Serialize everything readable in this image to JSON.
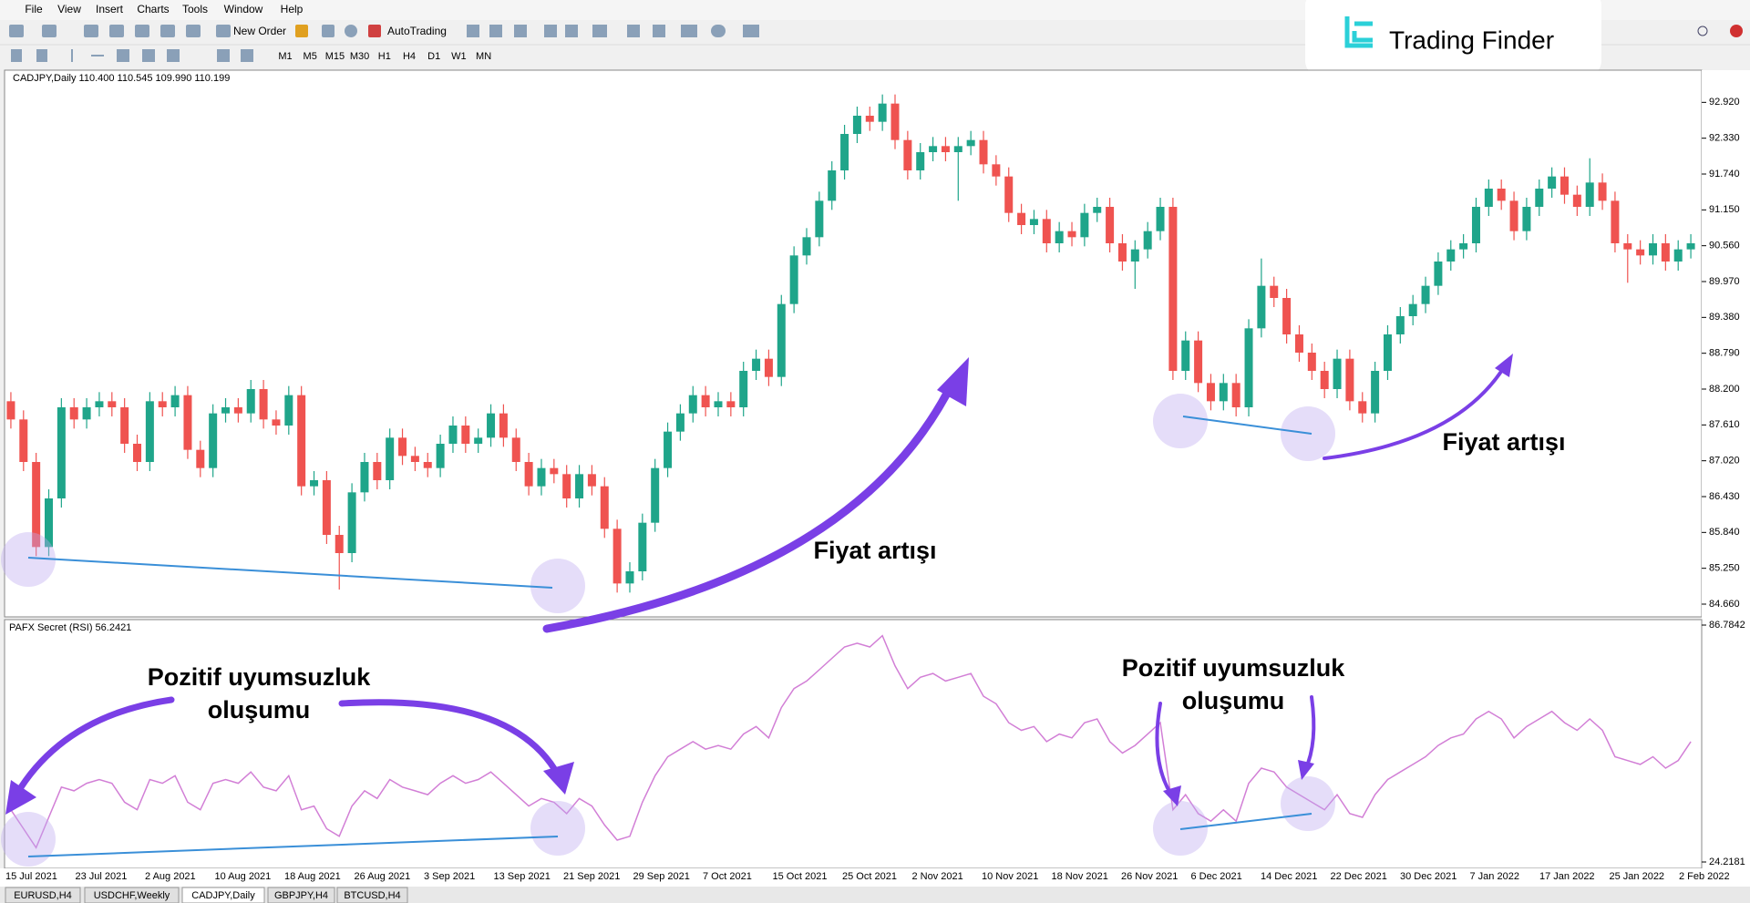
{
  "menu": [
    "File",
    "View",
    "Insert",
    "Charts",
    "Tools",
    "Window",
    "Help"
  ],
  "toolbar": {
    "buttons": [
      "New Order",
      "AutoTrading"
    ],
    "timeframes": [
      "M1",
      "M5",
      "M15",
      "M30",
      "H1",
      "H4",
      "D1",
      "W1",
      "MN"
    ]
  },
  "logo": "Trading Finder",
  "tabs": [
    "EURUSD,H4",
    "USDCHF,Weekly",
    "CADJPY,Daily",
    "GBPJPY,H4",
    "BTCUSD,H4"
  ],
  "active_tab": "CADJPY,Daily",
  "x_labels": [
    "15 Jul 2021",
    "23 Jul 2021",
    "2 Aug 2021",
    "10 Aug 2021",
    "18 Aug 2021",
    "26 Aug 2021",
    "3 Sep 2021",
    "13 Sep 2021",
    "21 Sep 2021",
    "29 Sep 2021",
    "7 Oct 2021",
    "15 Oct 2021",
    "25 Oct 2021",
    "2 Nov 2021",
    "10 Nov 2021",
    "18 Nov 2021",
    "26 Nov 2021",
    "6 Dec 2021",
    "14 Dec 2021",
    "22 Dec 2021",
    "30 Dec 2021",
    "7 Jan 2022",
    "17 Jan 2022",
    "25 Jan 2022",
    "2 Feb 2022"
  ],
  "chart_data": [
    {
      "type": "candlestick",
      "title": "CADJPY,Daily  110.400 110.545 109.990 110.199",
      "up_color": "#1fa58a",
      "down_color": "#ef5350",
      "open": [
        88.0,
        87.7,
        87.0,
        85.6,
        86.4,
        87.9,
        87.7,
        87.9,
        88.0,
        87.9,
        87.3,
        87.0,
        88.0,
        87.9,
        88.1,
        87.2,
        86.9,
        87.8,
        87.9,
        87.8,
        88.2,
        87.7,
        87.6,
        88.1,
        86.6,
        86.7,
        85.8,
        85.5,
        86.5,
        87.0,
        86.7,
        87.4,
        87.1,
        87.0,
        86.9,
        87.3,
        87.6,
        87.3,
        87.4,
        87.8,
        87.4,
        87.0,
        86.6,
        86.9,
        86.8,
        86.4,
        86.8,
        86.6,
        85.9,
        85.0,
        85.2,
        86.0,
        86.9,
        87.5,
        87.8,
        88.1,
        87.9,
        88.0,
        87.9,
        88.5,
        88.7,
        88.4,
        89.6,
        90.4,
        90.7,
        91.3,
        91.8,
        92.4,
        92.7,
        92.6,
        92.9,
        92.3,
        91.8,
        92.1,
        92.2,
        92.1,
        92.2,
        92.3,
        91.9,
        91.7,
        91.1,
        90.9,
        91.0,
        90.6,
        90.8,
        90.7,
        91.1,
        91.2,
        90.6,
        90.3,
        90.5,
        90.8,
        91.2,
        88.5,
        89.0,
        88.3,
        88.0,
        88.3,
        87.9,
        89.2,
        89.9,
        89.7,
        89.1,
        88.8,
        88.5,
        88.2,
        88.7,
        88.0,
        87.8,
        88.5,
        89.1,
        89.4,
        89.6,
        89.9,
        90.3,
        90.5,
        90.6,
        91.2,
        91.5,
        91.3,
        90.8,
        91.2,
        91.5,
        91.7,
        91.4,
        91.2,
        91.6,
        91.3,
        90.6,
        90.5,
        90.4,
        90.6,
        90.3,
        90.5
      ],
      "high": [
        88.15,
        87.85,
        87.15,
        86.55,
        88.05,
        88.05,
        88.05,
        88.15,
        88.15,
        88.05,
        87.45,
        88.15,
        88.15,
        88.25,
        88.25,
        87.35,
        87.95,
        88.05,
        88.05,
        88.35,
        88.35,
        87.85,
        88.25,
        88.25,
        86.85,
        86.85,
        85.95,
        86.65,
        87.15,
        87.15,
        87.55,
        87.55,
        87.25,
        87.15,
        87.45,
        87.75,
        87.75,
        87.55,
        87.95,
        87.95,
        87.55,
        87.15,
        87.05,
        87.05,
        86.95,
        86.95,
        86.95,
        86.75,
        86.05,
        85.35,
        86.15,
        87.05,
        87.65,
        87.95,
        88.25,
        88.25,
        88.15,
        88.15,
        88.65,
        88.85,
        88.85,
        89.75,
        90.55,
        90.85,
        91.45,
        91.95,
        92.55,
        92.85,
        92.85,
        93.05,
        93.05,
        92.45,
        92.25,
        92.35,
        92.35,
        92.35,
        92.45,
        92.45,
        92.05,
        91.85,
        91.25,
        91.15,
        91.15,
        90.95,
        90.95,
        91.25,
        91.35,
        91.35,
        90.75,
        90.65,
        90.95,
        91.35,
        91.35,
        89.15,
        89.15,
        88.45,
        88.45,
        88.45,
        89.35,
        90.35,
        90.05,
        89.85,
        89.25,
        88.95,
        88.65,
        88.85,
        88.85,
        88.15,
        88.65,
        89.25,
        89.55,
        89.75,
        90.05,
        90.45,
        90.65,
        90.75,
        91.35,
        91.65,
        91.65,
        91.45,
        91.35,
        91.65,
        91.85,
        91.85,
        91.55,
        92.0,
        91.75,
        91.45,
        90.75,
        90.65,
        90.75,
        90.75,
        90.65,
        90.75
      ],
      "low": [
        87.55,
        86.85,
        85.45,
        85.45,
        86.25,
        87.55,
        87.55,
        87.75,
        87.75,
        87.15,
        86.85,
        86.85,
        87.75,
        87.75,
        87.05,
        86.75,
        86.75,
        87.65,
        87.65,
        87.65,
        87.55,
        87.45,
        87.45,
        86.45,
        86.45,
        85.65,
        84.9,
        85.35,
        86.35,
        86.55,
        86.55,
        86.95,
        86.85,
        86.75,
        86.75,
        87.15,
        87.15,
        87.15,
        87.25,
        87.25,
        86.85,
        86.45,
        86.45,
        86.65,
        86.25,
        86.25,
        86.45,
        85.75,
        84.85,
        84.85,
        85.05,
        85.85,
        86.75,
        87.35,
        87.65,
        87.75,
        87.75,
        87.75,
        87.75,
        88.35,
        88.25,
        88.25,
        89.45,
        90.25,
        90.55,
        91.15,
        91.65,
        92.25,
        92.45,
        92.45,
        92.15,
        91.65,
        91.65,
        91.95,
        91.95,
        91.3,
        92.05,
        91.75,
        91.55,
        90.95,
        90.75,
        90.75,
        90.45,
        90.45,
        90.55,
        90.55,
        90.95,
        90.45,
        90.15,
        89.85,
        90.35,
        90.65,
        88.35,
        88.35,
        88.15,
        87.85,
        87.85,
        87.75,
        87.75,
        89.05,
        89.55,
        88.95,
        88.65,
        88.35,
        88.05,
        88.05,
        87.85,
        87.65,
        87.65,
        88.35,
        88.95,
        89.25,
        89.45,
        89.75,
        90.15,
        90.35,
        90.45,
        91.05,
        91.15,
        90.65,
        90.65,
        91.05,
        91.35,
        91.25,
        91.05,
        91.05,
        91.15,
        90.45,
        89.95,
        90.25,
        90.25,
        90.15,
        90.15,
        90.35
      ],
      "close": [
        87.7,
        87.0,
        85.6,
        86.4,
        87.9,
        87.7,
        87.9,
        88.0,
        87.9,
        87.3,
        87.0,
        88.0,
        87.9,
        88.1,
        87.2,
        86.9,
        87.8,
        87.9,
        87.8,
        88.2,
        87.7,
        87.6,
        88.1,
        86.6,
        86.7,
        85.8,
        85.5,
        86.5,
        87.0,
        86.7,
        87.4,
        87.1,
        87.0,
        86.9,
        87.3,
        87.6,
        87.3,
        87.4,
        87.8,
        87.4,
        87.0,
        86.6,
        86.9,
        86.8,
        86.4,
        86.8,
        86.6,
        85.9,
        85.0,
        85.2,
        86.0,
        86.9,
        87.5,
        87.8,
        88.1,
        87.9,
        88.0,
        87.9,
        88.5,
        88.7,
        88.4,
        89.6,
        90.4,
        90.7,
        91.3,
        91.8,
        92.4,
        92.7,
        92.6,
        92.9,
        92.3,
        91.8,
        92.1,
        92.2,
        92.1,
        92.2,
        92.3,
        91.9,
        91.7,
        91.1,
        90.9,
        91.0,
        90.6,
        90.8,
        90.7,
        91.1,
        91.2,
        90.6,
        90.3,
        90.5,
        90.8,
        91.2,
        88.5,
        89.0,
        88.3,
        88.0,
        88.3,
        87.9,
        89.2,
        89.9,
        89.7,
        89.1,
        88.8,
        88.5,
        88.2,
        88.7,
        88.0,
        87.8,
        88.5,
        89.1,
        89.4,
        89.6,
        89.9,
        90.3,
        90.5,
        90.6,
        91.2,
        91.5,
        91.3,
        90.8,
        91.2,
        91.5,
        91.7,
        91.4,
        91.2,
        91.6,
        91.3,
        90.6,
        90.5,
        90.4,
        90.6,
        90.3,
        90.5,
        90.6
      ],
      "ylim": [
        84.45,
        93.45
      ],
      "yticks": [
        {
          "value": 92.92,
          "label": "92.920"
        },
        {
          "value": 92.33,
          "label": "92.330"
        },
        {
          "value": 91.74,
          "label": "91.740"
        },
        {
          "value": 91.15,
          "label": "91.150"
        },
        {
          "value": 90.56,
          "label": "90.560"
        },
        {
          "value": 89.97,
          "label": "89.970"
        },
        {
          "value": 89.38,
          "label": "89.380"
        },
        {
          "value": 88.79,
          "label": "88.790"
        },
        {
          "value": 88.2,
          "label": "88.200"
        },
        {
          "value": 87.61,
          "label": "87.610"
        },
        {
          "value": 87.02,
          "label": "87.020"
        },
        {
          "value": 86.43,
          "label": "86.430"
        },
        {
          "value": 85.84,
          "label": "85.840"
        },
        {
          "value": 85.25,
          "label": "85.250"
        },
        {
          "value": 84.66,
          "label": "84.660"
        }
      ],
      "annotations": [
        "Fiyat artışı",
        "Fiyat artışı"
      ]
    },
    {
      "type": "line",
      "title": "PAFX Secret (RSI) 56.2421",
      "color": "#d27fd6",
      "values": [
        38,
        33,
        28,
        36,
        44,
        43,
        45,
        46,
        45,
        40,
        38,
        46,
        45,
        47,
        40,
        38,
        45,
        46,
        45,
        48,
        44,
        43,
        47,
        38,
        39,
        33,
        31,
        39,
        43,
        41,
        46,
        44,
        43,
        42,
        45,
        47,
        45,
        46,
        48,
        45,
        42,
        39,
        41,
        40,
        37,
        41,
        39,
        34,
        30,
        31,
        40,
        47,
        52,
        54,
        56,
        54,
        55,
        54,
        58,
        60,
        57,
        65,
        70,
        72,
        75,
        78,
        81,
        82,
        81,
        84,
        76,
        70,
        73,
        74,
        72,
        73,
        74,
        68,
        66,
        61,
        59,
        60,
        56,
        58,
        57,
        61,
        62,
        56,
        53,
        55,
        58,
        61,
        38,
        42,
        37,
        35,
        38,
        35,
        45,
        49,
        48,
        44,
        42,
        40,
        38,
        42,
        37,
        36,
        42,
        46,
        48,
        50,
        52,
        55,
        57,
        58,
        62,
        64,
        62,
        57,
        60,
        62,
        64,
        61,
        59,
        62,
        59,
        52,
        51,
        50,
        52,
        49,
        51,
        56
      ],
      "ylim": [
        24.2181,
        86.7842
      ],
      "yticks": [
        86.7842,
        24.2181
      ],
      "annotations": [
        [
          "Pozitif uyumsuzluk",
          "oluşumu"
        ],
        [
          "Pozitif uyumsuzluk",
          "oluşumu"
        ]
      ]
    }
  ]
}
